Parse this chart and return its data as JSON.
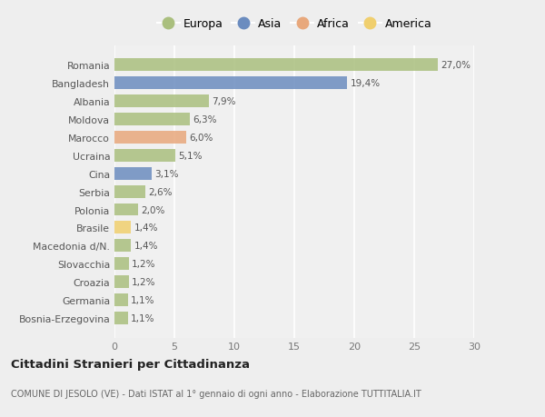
{
  "categories": [
    "Bosnia-Erzegovina",
    "Germania",
    "Croazia",
    "Slovacchia",
    "Macedonia d/N.",
    "Brasile",
    "Polonia",
    "Serbia",
    "Cina",
    "Ucraina",
    "Marocco",
    "Moldova",
    "Albania",
    "Bangladesh",
    "Romania"
  ],
  "values": [
    1.1,
    1.1,
    1.2,
    1.2,
    1.4,
    1.4,
    2.0,
    2.6,
    3.1,
    5.1,
    6.0,
    6.3,
    7.9,
    19.4,
    27.0
  ],
  "labels": [
    "1,1%",
    "1,1%",
    "1,2%",
    "1,2%",
    "1,4%",
    "1,4%",
    "2,0%",
    "2,6%",
    "3,1%",
    "5,1%",
    "6,0%",
    "6,3%",
    "7,9%",
    "19,4%",
    "27,0%"
  ],
  "continent": [
    "Europa",
    "Europa",
    "Europa",
    "Europa",
    "Europa",
    "America",
    "Europa",
    "Europa",
    "Asia",
    "Europa",
    "Africa",
    "Europa",
    "Europa",
    "Asia",
    "Europa"
  ],
  "colors": {
    "Europa": "#aabf7e",
    "Asia": "#6b8cbf",
    "Africa": "#e8a87c",
    "America": "#f0cf6e"
  },
  "legend_order": [
    "Europa",
    "Asia",
    "Africa",
    "America"
  ],
  "title": "Cittadini Stranieri per Cittadinanza",
  "subtitle": "COMUNE DI JESOLO (VE) - Dati ISTAT al 1° gennaio di ogni anno - Elaborazione TUTTITALIA.IT",
  "xlim": [
    0,
    30
  ],
  "xticks": [
    0,
    5,
    10,
    15,
    20,
    25,
    30
  ],
  "bg_color": "#eeeeee",
  "plot_bg_color": "#f0f0f0"
}
